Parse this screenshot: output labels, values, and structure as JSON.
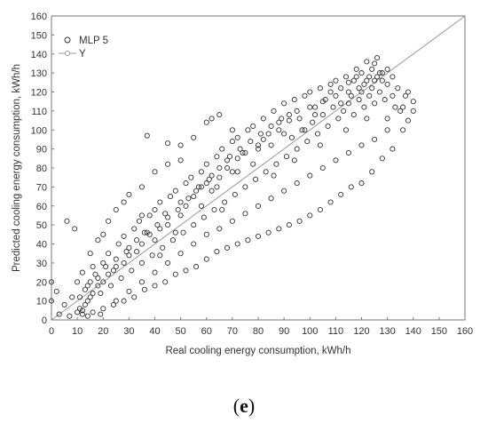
{
  "chart_data": {
    "type": "scatter",
    "title": "",
    "xlabel": "Real cooling energy consumption, kWh/h",
    "ylabel": "Predicted cooling energy consumption, kWh/h",
    "xlim": [
      0,
      160
    ],
    "ylim": [
      0,
      160
    ],
    "xticks": [
      "0",
      "10",
      "20",
      "30",
      "40",
      "50",
      "60",
      "70",
      "80",
      "90",
      "100",
      "110",
      "120",
      "130",
      "140",
      "150",
      "160"
    ],
    "yticks": [
      "0",
      "10",
      "20",
      "30",
      "40",
      "50",
      "60",
      "70",
      "80",
      "90",
      "100",
      "110",
      "120",
      "130",
      "140",
      "150",
      "160"
    ],
    "grid": false,
    "legend_position": "top-left",
    "series": [
      {
        "name": "MLP 5",
        "marker": "open-circle",
        "color": "#333333",
        "points": [
          [
            10,
            4
          ],
          [
            11,
            6
          ],
          [
            12,
            5
          ],
          [
            13,
            8
          ],
          [
            14,
            10
          ],
          [
            12,
            3
          ],
          [
            15,
            12
          ],
          [
            16,
            14
          ],
          [
            18,
            18
          ],
          [
            20,
            20
          ],
          [
            22,
            24
          ],
          [
            25,
            28
          ],
          [
            28,
            30
          ],
          [
            30,
            34
          ],
          [
            33,
            36
          ],
          [
            35,
            40
          ],
          [
            38,
            45
          ],
          [
            40,
            42
          ],
          [
            42,
            48
          ],
          [
            45,
            50
          ],
          [
            48,
            46
          ],
          [
            50,
            55
          ],
          [
            52,
            60
          ],
          [
            55,
            65
          ],
          [
            58,
            70
          ],
          [
            60,
            72
          ],
          [
            62,
            68
          ],
          [
            65,
            75
          ],
          [
            68,
            80
          ],
          [
            70,
            78
          ],
          [
            72,
            85
          ],
          [
            75,
            88
          ],
          [
            78,
            82
          ],
          [
            80,
            90
          ],
          [
            82,
            95
          ],
          [
            85,
            92
          ],
          [
            88,
            100
          ],
          [
            90,
            98
          ],
          [
            92,
            105
          ],
          [
            95,
            110
          ],
          [
            98,
            100
          ],
          [
            100,
            112
          ],
          [
            102,
            108
          ],
          [
            105,
            115
          ],
          [
            108,
            120
          ],
          [
            110,
            118
          ],
          [
            112,
            122
          ],
          [
            115,
            125
          ],
          [
            118,
            128
          ],
          [
            120,
            130
          ],
          [
            122,
            126
          ],
          [
            124,
            132
          ],
          [
            125,
            135
          ],
          [
            126,
            128
          ],
          [
            128,
            130
          ],
          [
            130,
            124
          ],
          [
            132,
            118
          ],
          [
            135,
            110
          ],
          [
            138,
            105
          ],
          [
            140,
            115
          ],
          [
            15,
            35
          ],
          [
            18,
            42
          ],
          [
            20,
            45
          ],
          [
            22,
            52
          ],
          [
            25,
            58
          ],
          [
            28,
            62
          ],
          [
            30,
            66
          ],
          [
            35,
            70
          ],
          [
            40,
            78
          ],
          [
            45,
            82
          ],
          [
            50,
            92
          ],
          [
            55,
            96
          ],
          [
            60,
            104
          ],
          [
            65,
            108
          ],
          [
            70,
            100
          ],
          [
            25,
            10
          ],
          [
            30,
            15
          ],
          [
            35,
            20
          ],
          [
            40,
            25
          ],
          [
            45,
            30
          ],
          [
            50,
            35
          ],
          [
            55,
            40
          ],
          [
            60,
            45
          ],
          [
            65,
            48
          ],
          [
            70,
            52
          ],
          [
            75,
            56
          ],
          [
            80,
            60
          ],
          [
            85,
            64
          ],
          [
            90,
            68
          ],
          [
            95,
            72
          ],
          [
            100,
            76
          ],
          [
            105,
            80
          ],
          [
            110,
            84
          ],
          [
            115,
            88
          ],
          [
            120,
            92
          ],
          [
            125,
            95
          ],
          [
            130,
            100
          ],
          [
            0,
            20
          ],
          [
            0,
            10
          ],
          [
            2,
            15
          ],
          [
            5,
            8
          ],
          [
            8,
            12
          ],
          [
            10,
            20
          ],
          [
            12,
            25
          ],
          [
            14,
            18
          ],
          [
            16,
            28
          ],
          [
            18,
            22
          ],
          [
            20,
            30
          ],
          [
            22,
            35
          ],
          [
            24,
            26
          ],
          [
            26,
            40
          ],
          [
            28,
            44
          ],
          [
            30,
            38
          ],
          [
            32,
            48
          ],
          [
            34,
            52
          ],
          [
            36,
            46
          ],
          [
            38,
            55
          ],
          [
            40,
            58
          ],
          [
            42,
            62
          ],
          [
            44,
            56
          ],
          [
            46,
            65
          ],
          [
            48,
            68
          ],
          [
            50,
            62
          ],
          [
            52,
            72
          ],
          [
            54,
            75
          ],
          [
            56,
            68
          ],
          [
            58,
            78
          ],
          [
            60,
            82
          ],
          [
            62,
            76
          ],
          [
            64,
            86
          ],
          [
            66,
            90
          ],
          [
            68,
            84
          ],
          [
            70,
            94
          ],
          [
            72,
            96
          ],
          [
            74,
            88
          ],
          [
            76,
            100
          ],
          [
            78,
            102
          ],
          [
            80,
            92
          ],
          [
            82,
            106
          ],
          [
            84,
            98
          ],
          [
            86,
            110
          ],
          [
            88,
            104
          ],
          [
            90,
            114
          ],
          [
            92,
            108
          ],
          [
            94,
            116
          ],
          [
            96,
            106
          ],
          [
            98,
            118
          ],
          [
            100,
            120
          ],
          [
            102,
            112
          ],
          [
            104,
            122
          ],
          [
            106,
            116
          ],
          [
            108,
            124
          ],
          [
            110,
            126
          ],
          [
            112,
            114
          ],
          [
            114,
            128
          ],
          [
            116,
            118
          ],
          [
            118,
            132
          ],
          [
            120,
            120
          ],
          [
            122,
            136
          ],
          [
            124,
            122
          ],
          [
            126,
            138
          ],
          [
            128,
            126
          ],
          [
            130,
            132
          ],
          [
            132,
            128
          ],
          [
            134,
            122
          ],
          [
            136,
            112
          ],
          [
            138,
            120
          ],
          [
            140,
            110
          ],
          [
            136,
            100
          ],
          [
            132,
            90
          ],
          [
            128,
            85
          ],
          [
            124,
            78
          ],
          [
            120,
            72
          ],
          [
            116,
            70
          ],
          [
            112,
            66
          ],
          [
            108,
            62
          ],
          [
            104,
            58
          ],
          [
            100,
            55
          ],
          [
            96,
            52
          ],
          [
            92,
            50
          ],
          [
            88,
            48
          ],
          [
            84,
            46
          ],
          [
            80,
            44
          ],
          [
            76,
            42
          ],
          [
            72,
            40
          ],
          [
            68,
            38
          ],
          [
            64,
            36
          ],
          [
            60,
            32
          ],
          [
            56,
            28
          ],
          [
            52,
            26
          ],
          [
            48,
            24
          ],
          [
            44,
            20
          ],
          [
            40,
            18
          ],
          [
            36,
            16
          ],
          [
            32,
            12
          ],
          [
            28,
            10
          ],
          [
            24,
            8
          ],
          [
            20,
            6
          ],
          [
            16,
            4
          ],
          [
            14,
            2
          ],
          [
            11,
            12
          ],
          [
            13,
            16
          ],
          [
            15,
            20
          ],
          [
            17,
            24
          ],
          [
            19,
            14
          ],
          [
            21,
            28
          ],
          [
            23,
            18
          ],
          [
            25,
            32
          ],
          [
            27,
            22
          ],
          [
            29,
            36
          ],
          [
            31,
            26
          ],
          [
            33,
            42
          ],
          [
            35,
            30
          ],
          [
            37,
            46
          ],
          [
            39,
            34
          ],
          [
            41,
            50
          ],
          [
            43,
            38
          ],
          [
            45,
            54
          ],
          [
            47,
            42
          ],
          [
            49,
            58
          ],
          [
            51,
            46
          ],
          [
            53,
            64
          ],
          [
            55,
            50
          ],
          [
            57,
            70
          ],
          [
            59,
            54
          ],
          [
            61,
            74
          ],
          [
            63,
            58
          ],
          [
            65,
            80
          ],
          [
            67,
            62
          ],
          [
            69,
            86
          ],
          [
            71,
            66
          ],
          [
            73,
            90
          ],
          [
            75,
            70
          ],
          [
            77,
            94
          ],
          [
            79,
            74
          ],
          [
            81,
            98
          ],
          [
            83,
            78
          ],
          [
            85,
            102
          ],
          [
            87,
            82
          ],
          [
            89,
            106
          ],
          [
            91,
            86
          ],
          [
            93,
            96
          ],
          [
            95,
            90
          ],
          [
            97,
            100
          ],
          [
            99,
            94
          ],
          [
            101,
            104
          ],
          [
            103,
            98
          ],
          [
            105,
            108
          ],
          [
            107,
            102
          ],
          [
            109,
            112
          ],
          [
            111,
            106
          ],
          [
            113,
            110
          ],
          [
            115,
            114
          ],
          [
            117,
            108
          ],
          [
            119,
            116
          ],
          [
            121,
            112
          ],
          [
            123,
            118
          ],
          [
            125,
            114
          ],
          [
            127,
            120
          ],
          [
            129,
            116
          ],
          [
            37,
            97
          ],
          [
            50,
            84
          ],
          [
            62,
            106
          ],
          [
            45,
            93
          ],
          [
            66,
            58
          ],
          [
            9,
            48
          ],
          [
            6,
            52
          ],
          [
            3,
            3
          ],
          [
            7,
            2
          ],
          [
            19,
            3
          ],
          [
            35,
            55
          ],
          [
            42,
            34
          ],
          [
            58,
            60
          ],
          [
            64,
            70
          ],
          [
            72,
            78
          ],
          [
            86,
            76
          ],
          [
            94,
            84
          ],
          [
            104,
            92
          ],
          [
            114,
            100
          ],
          [
            122,
            106
          ],
          [
            130,
            106
          ],
          [
            133,
            112
          ],
          [
            137,
            118
          ],
          [
            125,
            126
          ],
          [
            127,
            130
          ],
          [
            123,
            128
          ],
          [
            121,
            124
          ],
          [
            119,
            122
          ],
          [
            117,
            126
          ],
          [
            115,
            120
          ]
        ]
      },
      {
        "name": "Y",
        "marker": "line",
        "color": "#999999",
        "points": [
          [
            0,
            0
          ],
          [
            160,
            160
          ]
        ]
      }
    ]
  },
  "caption": {
    "open": "(",
    "letter": "e",
    "close": ")"
  }
}
